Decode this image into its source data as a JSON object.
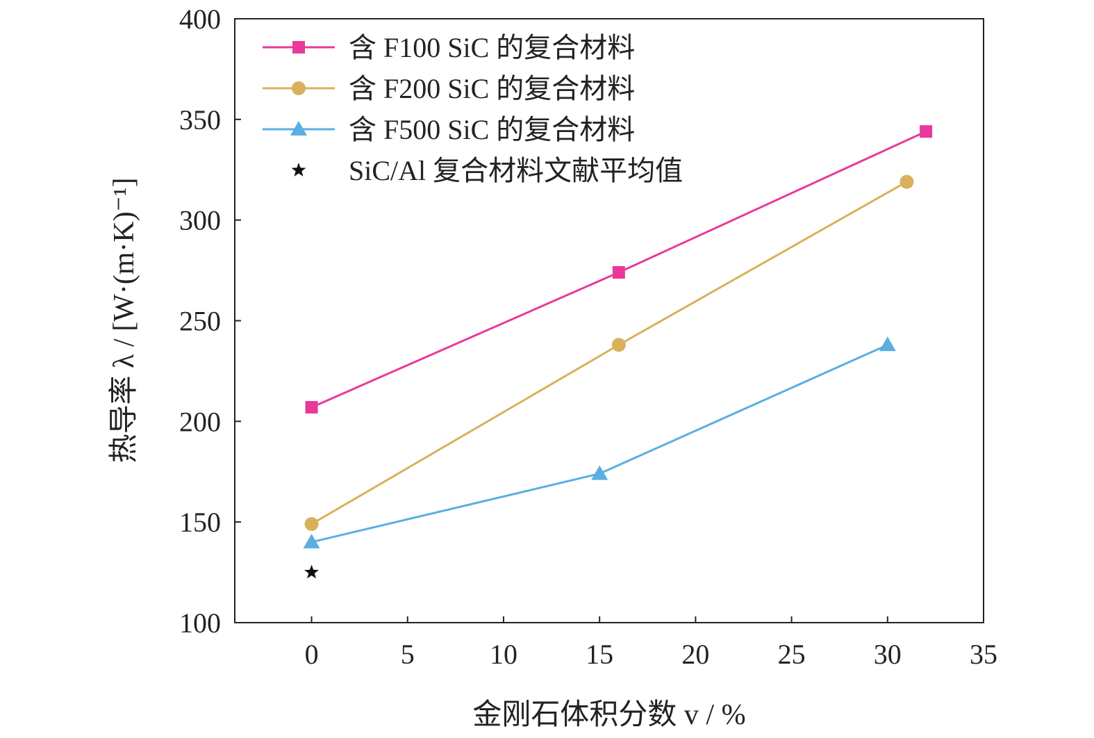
{
  "chart_data": {
    "type": "line",
    "title": "",
    "xlabel": "金刚石体积分数 v / %",
    "ylabel": "热导率 λ / [W·(m·K)⁻¹]",
    "xlim": [
      -4,
      35
    ],
    "ylim": [
      100,
      400
    ],
    "xticks": [
      0,
      5,
      10,
      15,
      20,
      25,
      30,
      35
    ],
    "yticks": [
      100,
      150,
      200,
      250,
      300,
      350,
      400
    ],
    "grid": false,
    "legend_position": "top-left",
    "series": [
      {
        "name": "含 F100 SiC 的复合材料",
        "color": "#e8399a",
        "marker": "square",
        "line": true,
        "points": [
          {
            "x": 0,
            "y": 207
          },
          {
            "x": 16,
            "y": 274
          },
          {
            "x": 32,
            "y": 344
          }
        ]
      },
      {
        "name": "含 F200 SiC 的复合材料",
        "color": "#d9b05c",
        "marker": "circle",
        "line": true,
        "points": [
          {
            "x": 0,
            "y": 149
          },
          {
            "x": 16,
            "y": 238
          },
          {
            "x": 31,
            "y": 319
          }
        ]
      },
      {
        "name": "含 F500 SiC 的复合材料",
        "color": "#5aafe0",
        "marker": "triangle",
        "line": true,
        "points": [
          {
            "x": 0,
            "y": 140
          },
          {
            "x": 15,
            "y": 174
          },
          {
            "x": 30,
            "y": 238
          }
        ]
      },
      {
        "name": "SiC/Al 复合材料文献平均值",
        "color": "#111111",
        "marker": "star",
        "line": false,
        "points": [
          {
            "x": 0,
            "y": 125
          }
        ]
      }
    ]
  }
}
